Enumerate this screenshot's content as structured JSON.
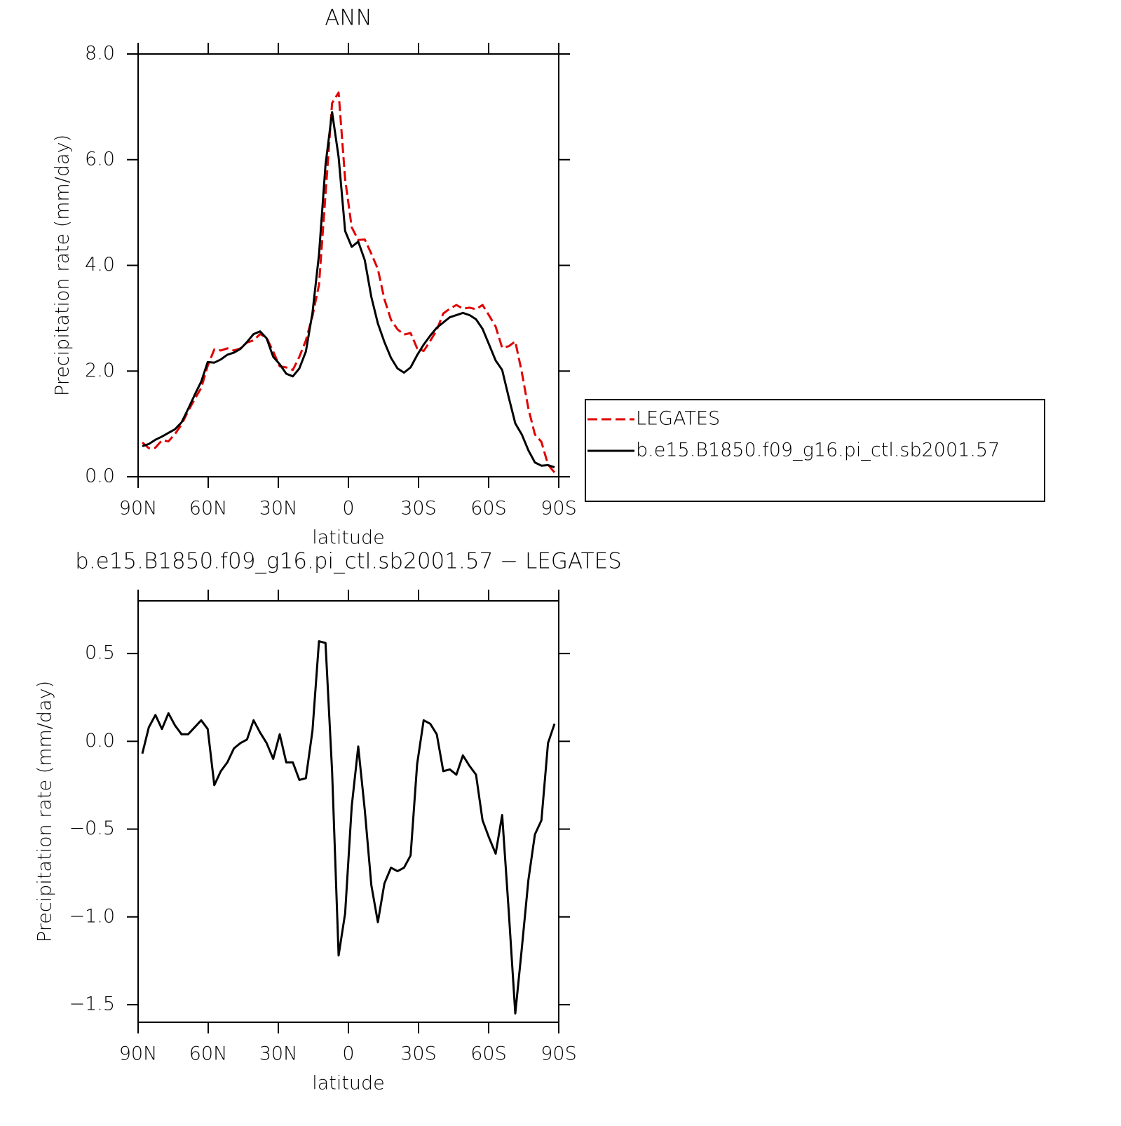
{
  "chart_data": [
    {
      "type": "line",
      "title": "ANN",
      "xlabel": "latitude",
      "ylabel": "Precipitation rate (mm/day)",
      "x": [
        88.2,
        85.4,
        82.6,
        79.8,
        77.0,
        74.2,
        71.4,
        68.6,
        65.8,
        63.0,
        60.2,
        57.4,
        54.6,
        51.8,
        49.0,
        46.2,
        43.4,
        40.6,
        37.8,
        35.0,
        32.2,
        29.4,
        26.6,
        23.8,
        21.0,
        18.2,
        15.4,
        12.6,
        9.8,
        7.0,
        4.2,
        1.4,
        -1.4,
        -4.2,
        -7.0,
        -9.8,
        -12.6,
        -15.4,
        -18.2,
        -21.0,
        -23.8,
        -26.6,
        -29.4,
        -32.2,
        -35.0,
        -37.8,
        -40.6,
        -43.4,
        -46.2,
        -49.0,
        -51.8,
        -54.6,
        -57.4,
        -60.2,
        -63.0,
        -65.8,
        -68.6,
        -71.4,
        -74.2,
        -77.0,
        -79.8,
        -82.6,
        -85.4,
        -88.2
      ],
      "series": [
        {
          "name": "LEGATES",
          "color": "#e00000",
          "linestyle": "dashed",
          "values": [
            0.65,
            0.54,
            0.55,
            0.69,
            0.67,
            0.81,
            0.99,
            1.24,
            1.47,
            1.68,
            2.1,
            2.41,
            2.39,
            2.43,
            2.39,
            2.43,
            2.54,
            2.58,
            2.7,
            2.63,
            2.37,
            2.09,
            2.07,
            2.02,
            2.27,
            2.58,
            3.04,
            3.63,
            5.34,
            7.07,
            7.27,
            5.63,
            4.72,
            4.48,
            4.49,
            4.22,
            3.93,
            3.36,
            2.97,
            2.79,
            2.69,
            2.72,
            2.43,
            2.38,
            2.57,
            2.78,
            3.09,
            3.18,
            3.25,
            3.18,
            3.2,
            3.17,
            3.25,
            3.05,
            2.84,
            2.44,
            2.47,
            2.56,
            1.98,
            1.29,
            0.8,
            0.66,
            0.23,
            0.08
          ]
        },
        {
          "name": "b.e15.B1850.f09_g16.pi_ctl.sb2001.57",
          "color": "#000000",
          "linestyle": "solid",
          "values": [
            0.58,
            0.62,
            0.7,
            0.76,
            0.83,
            0.9,
            1.03,
            1.28,
            1.55,
            1.8,
            2.17,
            2.16,
            2.22,
            2.31,
            2.35,
            2.42,
            2.55,
            2.7,
            2.75,
            2.62,
            2.27,
            2.13,
            1.95,
            1.9,
            2.05,
            2.37,
            3.1,
            4.2,
            5.9,
            6.9,
            6.05,
            4.65,
            4.35,
            4.45,
            4.1,
            3.4,
            2.9,
            2.55,
            2.25,
            2.05,
            1.97,
            2.07,
            2.3,
            2.5,
            2.67,
            2.82,
            2.92,
            3.02,
            3.06,
            3.1,
            3.06,
            2.98,
            2.8,
            2.5,
            2.2,
            2.02,
            1.5,
            1.01,
            0.8,
            0.5,
            0.27,
            0.21,
            0.22,
            0.18
          ]
        }
      ],
      "xlim": [
        90,
        -90
      ],
      "xticks": [
        {
          "value": 90,
          "label": "90N"
        },
        {
          "value": 60,
          "label": "60N"
        },
        {
          "value": 30,
          "label": "30N"
        },
        0,
        {
          "value": -30,
          "label": "30S"
        },
        {
          "value": -60,
          "label": "60S"
        },
        {
          "value": -90,
          "label": "90S"
        }
      ],
      "ylim": [
        0,
        8
      ],
      "yticks": [
        {
          "value": 0,
          "label": "0.0"
        },
        {
          "value": 2,
          "label": "2.0"
        },
        {
          "value": 4,
          "label": "4.0"
        },
        {
          "value": 6,
          "label": "6.0"
        },
        {
          "value": 8,
          "label": "8.0"
        }
      ],
      "legend": "outside-right"
    },
    {
      "type": "line",
      "title": "b.e15.B1850.f09_g16.pi_ctl.sb2001.57 − LEGATES",
      "xlabel": "latitude",
      "ylabel": "Precipitation rate (mm/day)",
      "x": [
        88.2,
        85.4,
        82.6,
        79.8,
        77.0,
        74.2,
        71.4,
        68.6,
        65.8,
        63.0,
        60.2,
        57.4,
        54.6,
        51.8,
        49.0,
        46.2,
        43.4,
        40.6,
        37.8,
        35.0,
        32.2,
        29.4,
        26.6,
        23.8,
        21.0,
        18.2,
        15.4,
        12.6,
        9.8,
        7.0,
        4.2,
        1.4,
        -1.4,
        -4.2,
        -7.0,
        -9.8,
        -12.6,
        -15.4,
        -18.2,
        -21.0,
        -23.8,
        -26.6,
        -29.4,
        -32.2,
        -35.0,
        -37.8,
        -40.6,
        -43.4,
        -46.2,
        -49.0,
        -51.8,
        -54.6,
        -57.4,
        -60.2,
        -63.0,
        -65.8,
        -68.6,
        -71.4,
        -74.2,
        -77.0,
        -79.8,
        -82.6,
        -85.4,
        -88.2
      ],
      "series": [
        {
          "color": "#000000",
          "linestyle": "solid",
          "values": [
            -0.07,
            0.08,
            0.15,
            0.07,
            0.16,
            0.09,
            0.04,
            0.04,
            0.08,
            0.12,
            0.07,
            -0.25,
            -0.17,
            -0.12,
            -0.04,
            -0.01,
            0.01,
            0.12,
            0.05,
            -0.01,
            -0.1,
            0.04,
            -0.12,
            -0.12,
            -0.22,
            -0.21,
            0.06,
            0.57,
            0.56,
            -0.17,
            -1.22,
            -0.98,
            -0.37,
            -0.03,
            -0.39,
            -0.82,
            -1.03,
            -0.81,
            -0.72,
            -0.74,
            -0.72,
            -0.65,
            -0.13,
            0.12,
            0.1,
            0.04,
            -0.17,
            -0.16,
            -0.19,
            -0.08,
            -0.14,
            -0.19,
            -0.45,
            -0.55,
            -0.64,
            -0.42,
            -0.97,
            -1.55,
            -1.18,
            -0.79,
            -0.53,
            -0.45,
            -0.01,
            0.1
          ]
        }
      ],
      "xlim": [
        90,
        -90
      ],
      "xticks": [
        {
          "value": 90,
          "label": "90N"
        },
        {
          "value": 60,
          "label": "60N"
        },
        {
          "value": 30,
          "label": "30N"
        },
        0,
        {
          "value": -30,
          "label": "30S"
        },
        {
          "value": -60,
          "label": "60S"
        },
        {
          "value": -90,
          "label": "90S"
        }
      ],
      "ylim": [
        -1.6,
        0.8
      ],
      "yticks": [
        {
          "value": -1.5,
          "label": "−1.5"
        },
        {
          "value": -1,
          "label": "−1.0"
        },
        {
          "value": -0.5,
          "label": "−0.5"
        },
        {
          "value": 0,
          "label": "0.0"
        },
        {
          "value": 0.5,
          "label": "0.5"
        }
      ]
    }
  ]
}
